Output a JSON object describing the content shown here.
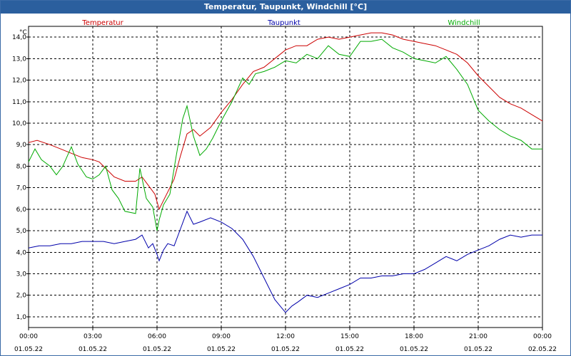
{
  "window": {
    "title": "Temperatur, Taupunkt, Windchill [°C]"
  },
  "chart_data": {
    "type": "line",
    "title": "Temperatur, Taupunkt, Windchill [°C]",
    "ylabel": "°C",
    "xlabel": "",
    "ylim": [
      0.5,
      14.5
    ],
    "xlim": [
      0,
      24
    ],
    "grid": true,
    "y_ticks": [
      {
        "value": 1,
        "label": "1,0"
      },
      {
        "value": 2,
        "label": "2,0"
      },
      {
        "value": 3,
        "label": "3,0"
      },
      {
        "value": 4,
        "label": "4,0"
      },
      {
        "value": 5,
        "label": "5,0"
      },
      {
        "value": 6,
        "label": "6,0"
      },
      {
        "value": 7,
        "label": "7,0"
      },
      {
        "value": 8,
        "label": "8,0"
      },
      {
        "value": 9,
        "label": "9,0"
      },
      {
        "value": 10,
        "label": "10,0"
      },
      {
        "value": 11,
        "label": "11,0"
      },
      {
        "value": 12,
        "label": "12,0"
      },
      {
        "value": 13,
        "label": "13,0"
      },
      {
        "value": 14,
        "label": "14,0"
      }
    ],
    "x_ticks": [
      {
        "hour": 0,
        "time": "00:00",
        "date": "01.05.22"
      },
      {
        "hour": 3,
        "time": "03:00",
        "date": "01.05.22"
      },
      {
        "hour": 6,
        "time": "06:00",
        "date": "01.05.22"
      },
      {
        "hour": 9,
        "time": "09:00",
        "date": "01.05.22"
      },
      {
        "hour": 12,
        "time": "12:00",
        "date": "01.05.22"
      },
      {
        "hour": 15,
        "time": "15:00",
        "date": "01.05.22"
      },
      {
        "hour": 18,
        "time": "18:00",
        "date": "01.05.22"
      },
      {
        "hour": 21,
        "time": "21:00",
        "date": "01.05.22"
      },
      {
        "hour": 24,
        "time": "00:00",
        "date": "02.05.22"
      }
    ],
    "series": [
      {
        "name": "Temperatur",
        "color": "#cc0000",
        "points": [
          [
            0,
            9.1
          ],
          [
            0.4,
            9.2
          ],
          [
            1,
            9.0
          ],
          [
            1.5,
            8.8
          ],
          [
            2,
            8.6
          ],
          [
            2.5,
            8.4
          ],
          [
            3,
            8.3
          ],
          [
            3.3,
            8.2
          ],
          [
            3.6,
            7.9
          ],
          [
            4,
            7.5
          ],
          [
            4.5,
            7.3
          ],
          [
            5,
            7.3
          ],
          [
            5.3,
            7.5
          ],
          [
            5.6,
            7.1
          ],
          [
            5.9,
            6.7
          ],
          [
            6.1,
            6.0
          ],
          [
            6.3,
            6.4
          ],
          [
            6.5,
            6.8
          ],
          [
            6.8,
            7.4
          ],
          [
            7.1,
            8.5
          ],
          [
            7.4,
            9.5
          ],
          [
            7.7,
            9.7
          ],
          [
            8,
            9.4
          ],
          [
            8.5,
            9.8
          ],
          [
            9,
            10.5
          ],
          [
            9.5,
            11.1
          ],
          [
            10,
            11.8
          ],
          [
            10.5,
            12.4
          ],
          [
            11,
            12.6
          ],
          [
            11.5,
            13.0
          ],
          [
            12,
            13.4
          ],
          [
            12.5,
            13.6
          ],
          [
            13,
            13.6
          ],
          [
            13.5,
            13.9
          ],
          [
            14,
            14.0
          ],
          [
            14.5,
            13.9
          ],
          [
            15,
            14.0
          ],
          [
            15.5,
            14.1
          ],
          [
            16,
            14.2
          ],
          [
            16.5,
            14.2
          ],
          [
            17,
            14.1
          ],
          [
            17.5,
            13.9
          ],
          [
            18,
            13.8
          ],
          [
            18.5,
            13.7
          ],
          [
            19,
            13.6
          ],
          [
            19.5,
            13.4
          ],
          [
            20,
            13.2
          ],
          [
            20.5,
            12.8
          ],
          [
            21,
            12.2
          ],
          [
            21.5,
            11.7
          ],
          [
            22,
            11.2
          ],
          [
            22.5,
            10.9
          ],
          [
            23,
            10.7
          ],
          [
            23.5,
            10.4
          ],
          [
            24,
            10.1
          ]
        ]
      },
      {
        "name": "Taupunkt",
        "color": "#0000aa",
        "points": [
          [
            0,
            4.2
          ],
          [
            0.5,
            4.3
          ],
          [
            1,
            4.3
          ],
          [
            1.5,
            4.4
          ],
          [
            2,
            4.4
          ],
          [
            2.5,
            4.5
          ],
          [
            3,
            4.5
          ],
          [
            3.5,
            4.5
          ],
          [
            4,
            4.4
          ],
          [
            4.5,
            4.5
          ],
          [
            5,
            4.6
          ],
          [
            5.3,
            4.8
          ],
          [
            5.6,
            4.2
          ],
          [
            5.8,
            4.4
          ],
          [
            6.0,
            3.9
          ],
          [
            6.1,
            3.6
          ],
          [
            6.3,
            4.1
          ],
          [
            6.5,
            4.4
          ],
          [
            6.8,
            4.3
          ],
          [
            7.1,
            5.1
          ],
          [
            7.4,
            5.9
          ],
          [
            7.7,
            5.3
          ],
          [
            8,
            5.4
          ],
          [
            8.5,
            5.6
          ],
          [
            9,
            5.4
          ],
          [
            9.5,
            5.1
          ],
          [
            10,
            4.6
          ],
          [
            10.5,
            3.8
          ],
          [
            11,
            2.8
          ],
          [
            11.5,
            1.8
          ],
          [
            12,
            1.2
          ],
          [
            12.3,
            1.5
          ],
          [
            12.6,
            1.7
          ],
          [
            13,
            2.0
          ],
          [
            13.5,
            1.9
          ],
          [
            14,
            2.1
          ],
          [
            14.5,
            2.3
          ],
          [
            15,
            2.5
          ],
          [
            15.5,
            2.8
          ],
          [
            16,
            2.8
          ],
          [
            16.5,
            2.9
          ],
          [
            17,
            2.9
          ],
          [
            17.5,
            3.0
          ],
          [
            18,
            3.0
          ],
          [
            18.5,
            3.2
          ],
          [
            19,
            3.5
          ],
          [
            19.5,
            3.8
          ],
          [
            20,
            3.6
          ],
          [
            20.5,
            3.9
          ],
          [
            21,
            4.1
          ],
          [
            21.5,
            4.3
          ],
          [
            22,
            4.6
          ],
          [
            22.5,
            4.8
          ],
          [
            23,
            4.7
          ],
          [
            23.5,
            4.8
          ],
          [
            24,
            4.8
          ]
        ]
      },
      {
        "name": "Windchill",
        "color": "#00aa00",
        "points": [
          [
            0,
            8.2
          ],
          [
            0.3,
            8.8
          ],
          [
            0.6,
            8.3
          ],
          [
            1,
            8.0
          ],
          [
            1.3,
            7.6
          ],
          [
            1.6,
            8.0
          ],
          [
            2,
            8.9
          ],
          [
            2.3,
            8.1
          ],
          [
            2.7,
            7.5
          ],
          [
            3,
            7.4
          ],
          [
            3.3,
            7.6
          ],
          [
            3.6,
            8.0
          ],
          [
            3.9,
            6.9
          ],
          [
            4.2,
            6.5
          ],
          [
            4.5,
            5.9
          ],
          [
            5,
            5.8
          ],
          [
            5.2,
            7.9
          ],
          [
            5.5,
            6.5
          ],
          [
            5.8,
            6.1
          ],
          [
            6.0,
            5.0
          ],
          [
            6.1,
            5.5
          ],
          [
            6.3,
            6.2
          ],
          [
            6.6,
            6.7
          ],
          [
            6.9,
            8.5
          ],
          [
            7.2,
            10.2
          ],
          [
            7.4,
            10.8
          ],
          [
            7.7,
            9.4
          ],
          [
            8,
            8.5
          ],
          [
            8.3,
            8.8
          ],
          [
            8.6,
            9.3
          ],
          [
            9,
            10.1
          ],
          [
            9.5,
            11.0
          ],
          [
            10,
            12.1
          ],
          [
            10.3,
            11.8
          ],
          [
            10.6,
            12.3
          ],
          [
            11,
            12.4
          ],
          [
            11.5,
            12.6
          ],
          [
            12,
            12.9
          ],
          [
            12.5,
            12.8
          ],
          [
            13,
            13.2
          ],
          [
            13.5,
            13.0
          ],
          [
            14,
            13.6
          ],
          [
            14.5,
            13.2
          ],
          [
            15,
            13.1
          ],
          [
            15.5,
            13.8
          ],
          [
            16,
            13.8
          ],
          [
            16.5,
            13.9
          ],
          [
            17,
            13.5
          ],
          [
            17.5,
            13.3
          ],
          [
            18,
            13.0
          ],
          [
            18.5,
            12.9
          ],
          [
            19,
            12.8
          ],
          [
            19.5,
            13.1
          ],
          [
            20,
            12.5
          ],
          [
            20.5,
            11.8
          ],
          [
            21,
            10.6
          ],
          [
            21.5,
            10.1
          ],
          [
            22,
            9.7
          ],
          [
            22.5,
            9.4
          ],
          [
            23,
            9.2
          ],
          [
            23.5,
            8.8
          ],
          [
            24,
            8.8
          ]
        ]
      }
    ]
  }
}
